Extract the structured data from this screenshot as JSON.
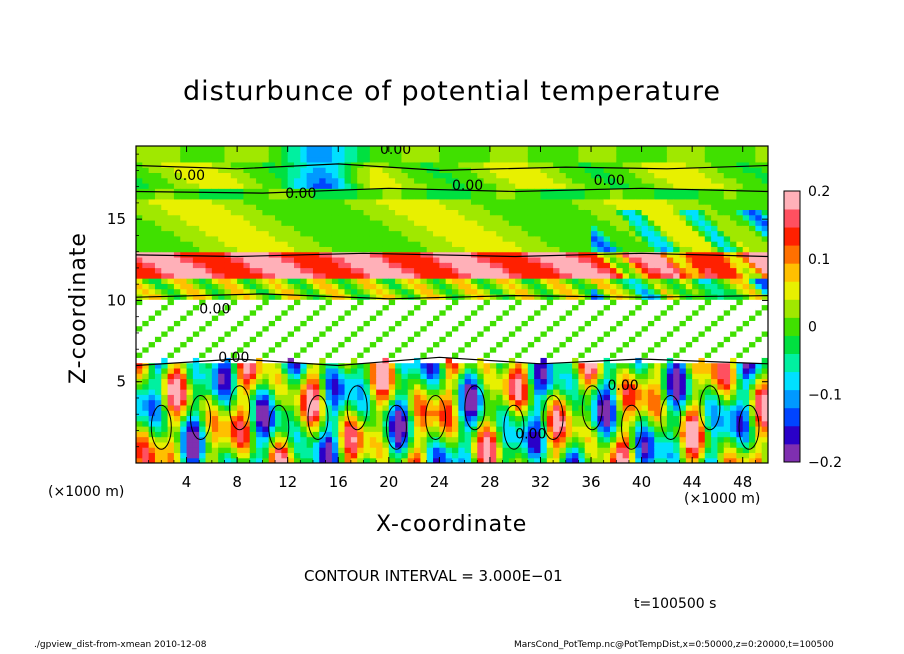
{
  "chart_data": {
    "type": "heatmap",
    "title": "disturbunce of potential temperature",
    "xlabel": "X-coordinate",
    "ylabel": "Z-coordinate",
    "x_unit": "(×1000 m)",
    "xlim": [
      0,
      50
    ],
    "ylim": [
      0,
      19.5
    ],
    "x_ticks": [
      4,
      8,
      12,
      16,
      20,
      24,
      28,
      32,
      36,
      40,
      44,
      48
    ],
    "y_ticks": [
      5,
      10,
      15
    ],
    "colorbar": {
      "range": [
        -0.2,
        0.2
      ],
      "ticks": [
        {
          "value": 0.2,
          "label": "0.2"
        },
        {
          "value": 0.1,
          "label": "0.1"
        },
        {
          "value": 0,
          "label": "0"
        },
        {
          "value": -0.1,
          "label": "−0.1"
        },
        {
          "value": -0.2,
          "label": "−0.2"
        }
      ],
      "colors": [
        "#7f2fb0",
        "#2a00c8",
        "#0044ff",
        "#0099ff",
        "#00e0ff",
        "#00f0a0",
        "#00e040",
        "#40e000",
        "#a0e800",
        "#e8f000",
        "#ffc000",
        "#ff7000",
        "#ff2000",
        "#ff5060",
        "#ffb0b8"
      ]
    },
    "contour_labels": [
      {
        "text": "0.00",
        "x": 19.3,
        "z": 19.0
      },
      {
        "text": "0.00",
        "x": 3.0,
        "z": 17.4
      },
      {
        "text": "0.00",
        "x": 11.8,
        "z": 16.3
      },
      {
        "text": "0.00",
        "x": 25.0,
        "z": 16.8
      },
      {
        "text": "0.00",
        "x": 36.2,
        "z": 17.1
      },
      {
        "text": "0.00",
        "x": 5.0,
        "z": 9.2
      },
      {
        "text": "0.00",
        "x": 6.5,
        "z": 6.2
      },
      {
        "text": "0.00",
        "x": 37.3,
        "z": 4.5
      },
      {
        "text": "0.00",
        "x": 30.0,
        "z": 1.5
      }
    ],
    "contour_interval_text": "CONTOUR INTERVAL = 3.000E−01",
    "time_text": "t=100500 s"
  },
  "footer": {
    "left": "./gpview_dist-from-xmean  2010-12-08",
    "right": "MarsCond_PotTemp.nc@PotTempDist,x=0:50000,z=0:20000,t=100500"
  }
}
